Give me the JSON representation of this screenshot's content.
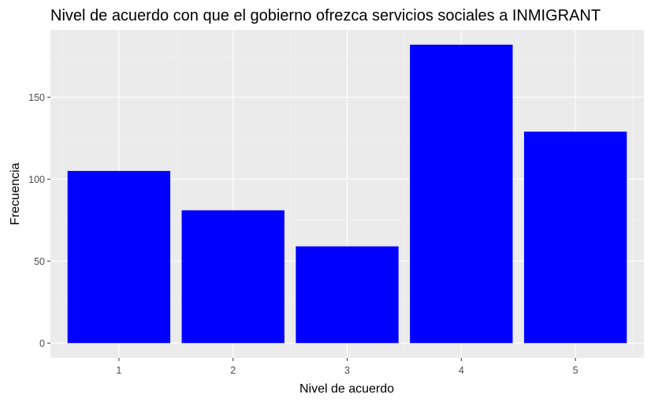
{
  "chart_data": {
    "type": "bar",
    "title": "Nivel de acuerdo con que el gobierno ofrezca servicios sociales a INMIGRANT",
    "xlabel": "Nivel de acuerdo",
    "ylabel": "Frecuencia",
    "categories": [
      "1",
      "2",
      "3",
      "4",
      "5"
    ],
    "values": [
      105,
      81,
      59,
      182,
      129
    ],
    "ylim": [
      -9,
      191
    ],
    "yticks": [
      0,
      50,
      100,
      150
    ],
    "ytick_labels": [
      "0",
      "50",
      "100",
      "150"
    ],
    "grid": true,
    "legend": "none",
    "bar_color": "#0000ff",
    "panel_background": "#ebebeb"
  }
}
